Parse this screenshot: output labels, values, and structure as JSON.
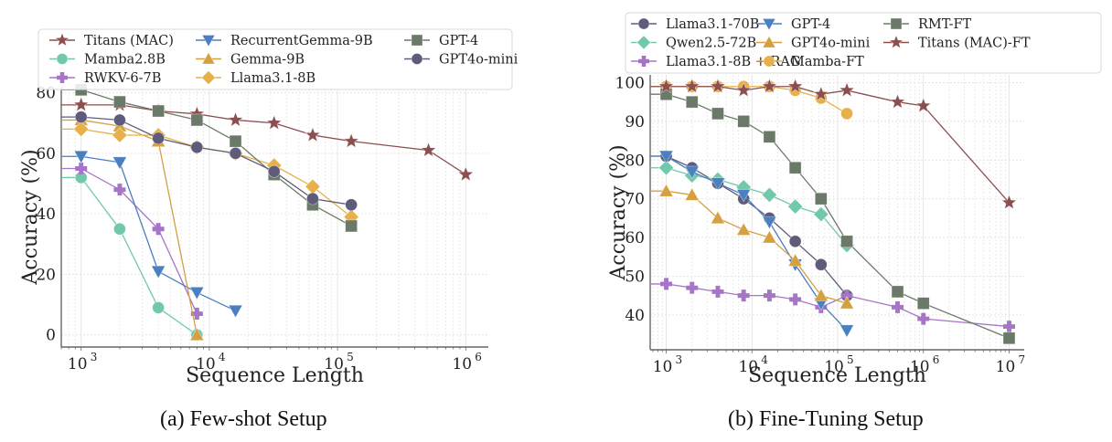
{
  "chart_data": [
    {
      "type": "line",
      "title": "",
      "caption": "(a) Few-shot Setup",
      "xlabel": "Sequence Length",
      "ylabel": "Accuracy (%)",
      "xscale": "log",
      "xlim": [
        700,
        1500000
      ],
      "ylim": [
        -4,
        82
      ],
      "yticks": [
        0,
        20,
        40,
        60,
        80
      ],
      "xticks": [
        {
          "v": 1000,
          "exp": "3"
        },
        {
          "v": 10000,
          "exp": "4"
        },
        {
          "v": 100000,
          "exp": "5"
        },
        {
          "v": 1000000,
          "exp": "6"
        }
      ],
      "grid": true,
      "legend_position": "top",
      "series": [
        {
          "name": "Titans (MAC)",
          "color": "#8c4f4f",
          "marker": "star",
          "x": [
            1000,
            2000,
            4000,
            8000,
            16000,
            32000,
            64000,
            128000,
            512000,
            1000000
          ],
          "y": [
            76,
            76,
            74,
            73,
            71,
            70,
            66,
            64,
            61,
            53
          ]
        },
        {
          "name": "Mamba2.8B",
          "color": "#72c8ad",
          "marker": "circle",
          "x": [
            1000,
            2000,
            4000,
            8000
          ],
          "y": [
            52,
            35,
            9,
            0
          ]
        },
        {
          "name": "RWKV-6-7B",
          "color": "#a775c8",
          "marker": "plus",
          "x": [
            1000,
            2000,
            4000,
            8000
          ],
          "y": [
            55,
            48,
            35,
            7
          ]
        },
        {
          "name": "RecurrentGemma-9B",
          "color": "#4a7fc0",
          "marker": "triangle-down",
          "x": [
            1000,
            2000,
            4000,
            8000,
            16000
          ],
          "y": [
            59,
            57,
            21,
            14,
            8
          ]
        },
        {
          "name": "Gemma-9B",
          "color": "#d4a040",
          "marker": "triangle-up",
          "x": [
            1000,
            2000,
            4000,
            8000
          ],
          "y": [
            71,
            69,
            64,
            0
          ]
        },
        {
          "name": "Llama3.1-8B",
          "color": "#e6b04a",
          "marker": "diamond",
          "x": [
            1000,
            2000,
            4000,
            8000,
            16000,
            32000,
            64000,
            128000
          ],
          "y": [
            68,
            66,
            66,
            62,
            60,
            56,
            49,
            39
          ]
        },
        {
          "name": "GPT-4",
          "color": "#6b7a68",
          "marker": "square",
          "x": [
            1000,
            2000,
            4000,
            8000,
            16000,
            32000,
            64000,
            128000
          ],
          "y": [
            81,
            77,
            74,
            71,
            64,
            53,
            43,
            36
          ]
        },
        {
          "name": "GPT4o-mini",
          "color": "#5e5c7a",
          "marker": "circle",
          "x": [
            1000,
            2000,
            4000,
            8000,
            16000,
            32000,
            64000,
            128000
          ],
          "y": [
            72,
            71,
            65,
            62,
            60,
            54,
            45,
            43
          ]
        }
      ]
    },
    {
      "type": "line",
      "title": "",
      "caption": "(b) Fine-Tuning Setup",
      "xlabel": "Sequence Length",
      "ylabel": "Accuracy (%)",
      "xscale": "log",
      "xlim": [
        650,
        15000000
      ],
      "ylim": [
        31,
        102
      ],
      "yticks": [
        40,
        50,
        60,
        70,
        80,
        90,
        100
      ],
      "xticks": [
        {
          "v": 1000,
          "exp": "3"
        },
        {
          "v": 10000,
          "exp": "4"
        },
        {
          "v": 100000,
          "exp": "5"
        },
        {
          "v": 1000000,
          "exp": "6"
        },
        {
          "v": 10000000,
          "exp": "7"
        }
      ],
      "grid": true,
      "legend_position": "top",
      "series": [
        {
          "name": "Llama3.1-70B",
          "color": "#5e5c7a",
          "marker": "circle",
          "x": [
            1000,
            2000,
            4000,
            8000,
            16000,
            32000,
            64000,
            128000
          ],
          "y": [
            81,
            78,
            74,
            70,
            65,
            59,
            53,
            45
          ]
        },
        {
          "name": "Qwen2.5-72B",
          "color": "#72c8ad",
          "marker": "diamond",
          "x": [
            1000,
            2000,
            4000,
            8000,
            16000,
            32000,
            64000,
            128000
          ],
          "y": [
            78,
            76,
            75,
            73,
            71,
            68,
            66,
            58
          ]
        },
        {
          "name": "Llama3.1-8B + RAG",
          "color": "#a775c8",
          "marker": "plus",
          "x": [
            1000,
            2000,
            4000,
            8000,
            16000,
            32000,
            64000,
            128000,
            500000,
            1000000,
            10000000
          ],
          "y": [
            48,
            47,
            46,
            45,
            45,
            44,
            42,
            45,
            42,
            39,
            37
          ]
        },
        {
          "name": "GPT-4",
          "color": "#4a7fc0",
          "marker": "triangle-down",
          "x": [
            1000,
            2000,
            4000,
            8000,
            16000,
            32000,
            64000,
            128000
          ],
          "y": [
            81,
            77,
            74,
            71,
            64,
            53,
            43,
            36
          ]
        },
        {
          "name": "GPT4o-mini",
          "color": "#d4a040",
          "marker": "triangle-up",
          "x": [
            1000,
            2000,
            4000,
            8000,
            16000,
            32000,
            64000,
            128000
          ],
          "y": [
            72,
            71,
            65,
            62,
            60,
            54,
            45,
            43
          ]
        },
        {
          "name": "Mamba-FT",
          "color": "#e6b04a",
          "marker": "circle",
          "x": [
            1000,
            2000,
            4000,
            8000,
            16000,
            32000,
            64000,
            128000
          ],
          "y": [
            99,
            99,
            99,
            99,
            99,
            98,
            96,
            92
          ]
        },
        {
          "name": "RMT-FT",
          "color": "#6b7a68",
          "marker": "square",
          "x": [
            1000,
            2000,
            4000,
            8000,
            16000,
            32000,
            64000,
            128000,
            500000,
            1000000,
            10000000
          ],
          "y": [
            97,
            95,
            92,
            90,
            86,
            78,
            70,
            59,
            46,
            43,
            34
          ]
        },
        {
          "name": "Titans (MAC)-FT",
          "color": "#8c4f4f",
          "marker": "star",
          "x": [
            1000,
            2000,
            4000,
            8000,
            16000,
            32000,
            64000,
            128000,
            500000,
            1000000,
            10000000
          ],
          "y": [
            99,
            99,
            99,
            98,
            99,
            99,
            97,
            98,
            95,
            94,
            69
          ]
        }
      ]
    }
  ]
}
